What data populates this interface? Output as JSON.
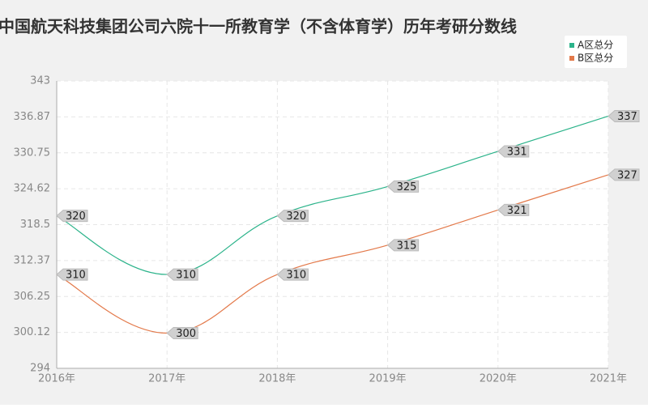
{
  "chart_data": {
    "type": "line",
    "title": "中国航天科技集团公司六院十一所教育学（不含体育学）历年考研分数线",
    "categories": [
      "2016年",
      "2017年",
      "2018年",
      "2019年",
      "2020年",
      "2021年"
    ],
    "series": [
      {
        "name": "A区总分",
        "color": "#2bb38a",
        "values": [
          320,
          310,
          320,
          325,
          331,
          337
        ]
      },
      {
        "name": "B区总分",
        "color": "#e3794a",
        "values": [
          310,
          300,
          310,
          315,
          321,
          327
        ]
      }
    ],
    "ylim": [
      294,
      343
    ],
    "yticks": [
      294,
      300.12,
      306.25,
      312.37,
      318.5,
      324.62,
      330.75,
      336.87,
      343
    ],
    "grid": true,
    "smooth": true,
    "legend": "top-right"
  }
}
